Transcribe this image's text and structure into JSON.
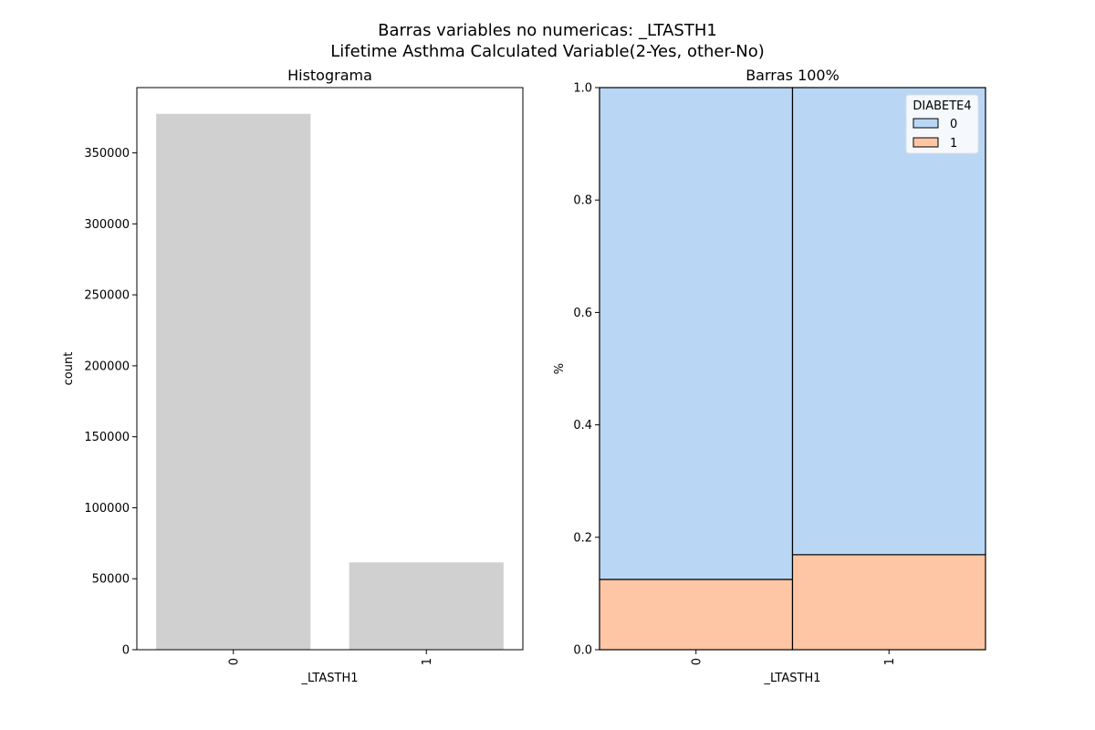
{
  "figure": {
    "title_line1": "Barras variables no numericas: _LTASTH1",
    "title_line2": "Lifetime Asthma Calculated Variable(2-Yes, other-No)"
  },
  "chart_data": [
    {
      "type": "bar",
      "title": "Histograma",
      "xlabel": "_LTASTH1",
      "ylabel": "count",
      "categories": [
        "0",
        "1"
      ],
      "values": [
        377500,
        61500
      ],
      "ylim": [
        0,
        396000
      ],
      "yticks": [
        0,
        50000,
        100000,
        150000,
        200000,
        250000,
        300000,
        350000
      ],
      "ytick_labels": [
        "0",
        "50000",
        "100000",
        "150000",
        "200000",
        "250000",
        "300000",
        "350000"
      ],
      "color": "#d0d0d0"
    },
    {
      "type": "bar",
      "title": "Barras 100%",
      "xlabel": "_LTASTH1",
      "ylabel": "%",
      "categories": [
        "0",
        "1"
      ],
      "stacked": true,
      "ylim": [
        0,
        1.0
      ],
      "yticks": [
        0.0,
        0.2,
        0.4,
        0.6,
        0.8,
        1.0
      ],
      "ytick_labels": [
        "0.0",
        "0.2",
        "0.4",
        "0.6",
        "0.8",
        "1.0"
      ],
      "legend": {
        "title": "DIABETE4",
        "location": "top-right"
      },
      "series": [
        {
          "name": "1",
          "values": [
            0.125,
            0.169
          ],
          "color": "#ffc6a5"
        },
        {
          "name": "0",
          "values": [
            0.875,
            0.831
          ],
          "color": "#b9d7f5"
        }
      ]
    }
  ]
}
